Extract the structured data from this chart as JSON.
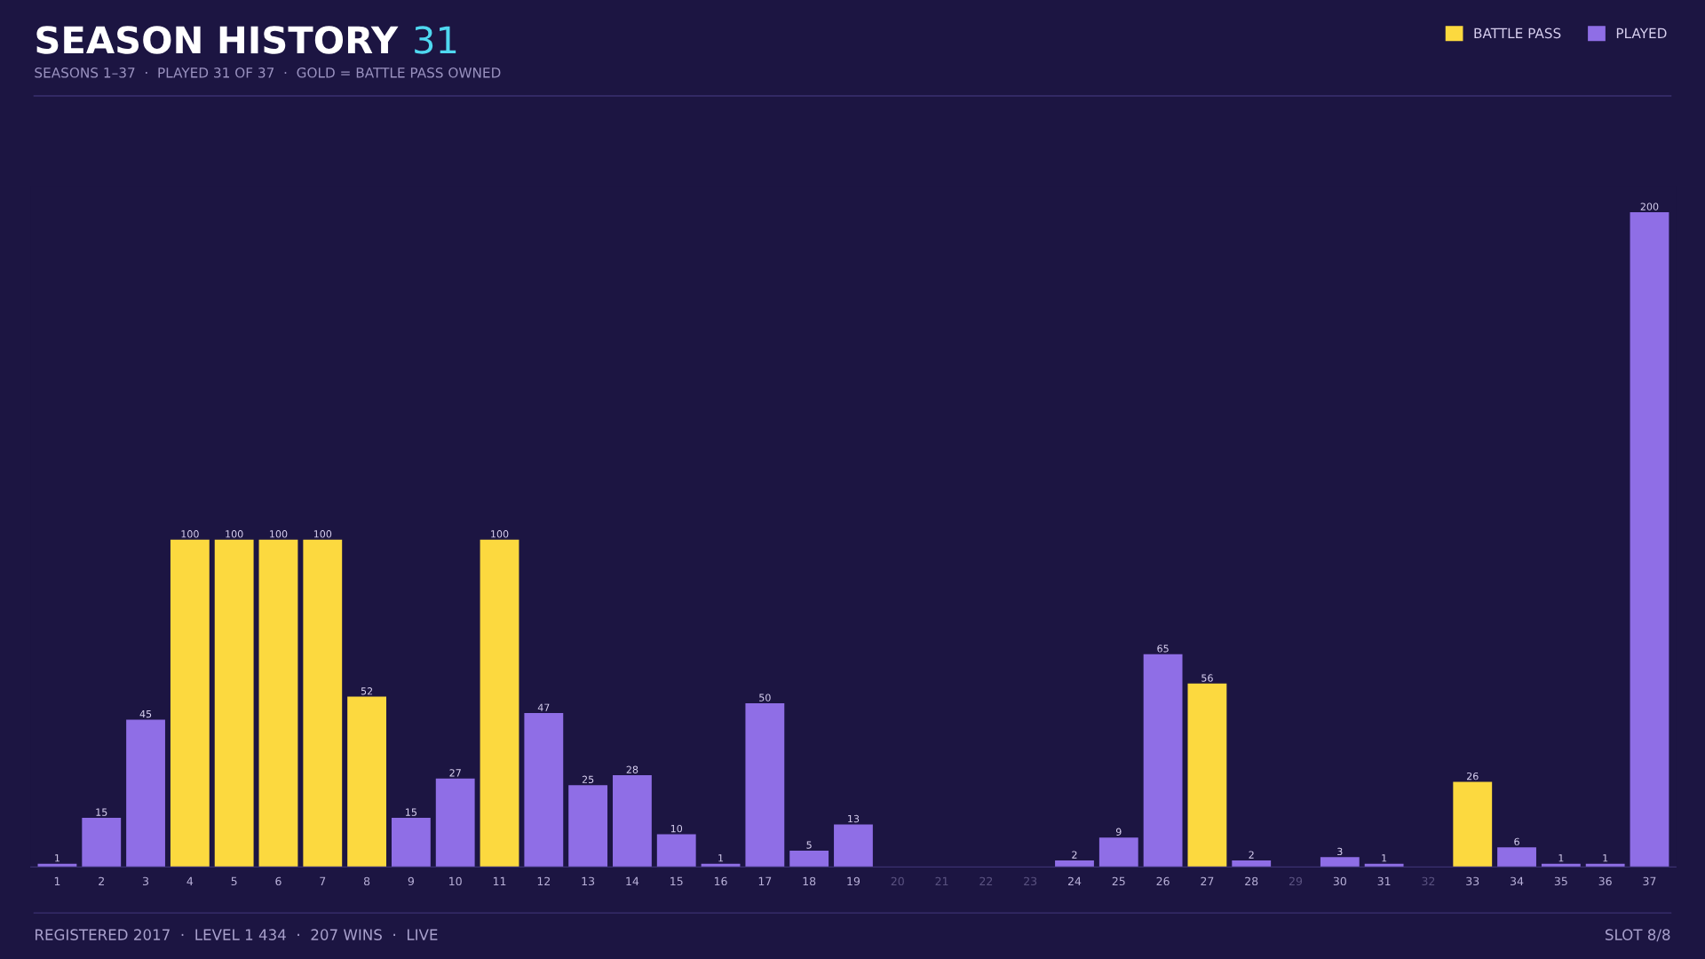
{
  "chart_data": {
    "type": "bar",
    "title": "SEASON HISTORY",
    "subtitle": "SEASONS 1–37  ·  PLAYED 31 OF 37  ·  GOLD = BATTLE PASS OWNED",
    "categories": [
      "1",
      "2",
      "3",
      "4",
      "5",
      "6",
      "7",
      "8",
      "9",
      "10",
      "11",
      "12",
      "13",
      "14",
      "15",
      "16",
      "17",
      "18",
      "19",
      "20",
      "21",
      "22",
      "23",
      "24",
      "25",
      "26",
      "27",
      "28",
      "29",
      "30",
      "31",
      "32",
      "33",
      "34",
      "35",
      "36",
      "37"
    ],
    "series": [
      {
        "name": "BATTLE PASS",
        "color": "#fcd93f",
        "values": [
          null,
          null,
          null,
          100,
          100,
          100,
          100,
          52,
          null,
          null,
          100,
          null,
          null,
          null,
          null,
          null,
          null,
          null,
          null,
          null,
          null,
          null,
          null,
          null,
          null,
          null,
          56,
          null,
          null,
          null,
          null,
          null,
          26,
          null,
          null,
          null,
          null
        ]
      },
      {
        "name": "PLAYED",
        "color": "#8f6ee6",
        "values": [
          1,
          15,
          45,
          null,
          null,
          null,
          null,
          null,
          15,
          27,
          null,
          47,
          25,
          28,
          10,
          1,
          50,
          5,
          13,
          null,
          null,
          null,
          null,
          2,
          9,
          65,
          null,
          2,
          null,
          3,
          1,
          null,
          null,
          6,
          1,
          1,
          200
        ]
      }
    ],
    "data_labels": true,
    "legend": "top right",
    "grid": false,
    "annotations": [
      "31",
      "REGISTERED 2017  ·  LEVEL 1 434  ·  207 WINS  ·  LIVE",
      "SLOT 8/8"
    ]
  }
}
